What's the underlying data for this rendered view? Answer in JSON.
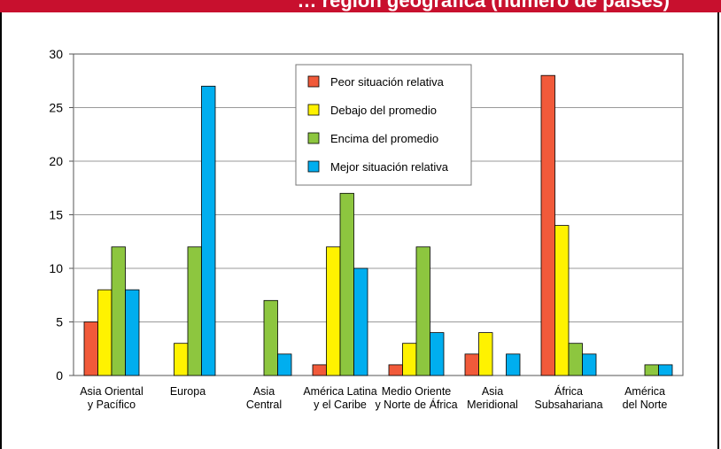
{
  "header": {
    "title": "… región geográfica (número de países)"
  },
  "colors": {
    "title_bar": "#c8102e",
    "peor": "#f15a3a",
    "debajo": "#fff200",
    "encima": "#8dc63f",
    "mejor": "#00aeef"
  },
  "chart_data": {
    "type": "bar",
    "title": "",
    "xlabel": "",
    "ylabel": "",
    "ylim": [
      0,
      30
    ],
    "yticks": [
      0,
      5,
      10,
      15,
      20,
      25,
      30
    ],
    "grid": true,
    "legend_position": "top-center",
    "categories": [
      [
        "Asia Oriental",
        "y Pacífico"
      ],
      [
        "Europa"
      ],
      [
        "Asia",
        "Central"
      ],
      [
        "América Latina",
        "y el Caribe"
      ],
      [
        "Medio Oriente",
        "y Norte de África"
      ],
      [
        "Asia",
        "Meridional"
      ],
      [
        "África",
        "Subsahariana"
      ],
      [
        "América",
        "del Norte"
      ]
    ],
    "series": [
      {
        "name": "Peor situación relativa",
        "color": "#f15a3a",
        "values": [
          5,
          0,
          0,
          1,
          1,
          2,
          28,
          0
        ]
      },
      {
        "name": "Debajo del promedio",
        "color": "#fff200",
        "values": [
          8,
          3,
          0,
          12,
          3,
          4,
          14,
          0
        ]
      },
      {
        "name": "Encima del promedio",
        "color": "#8dc63f",
        "values": [
          12,
          12,
          7,
          17,
          12,
          0,
          3,
          1
        ]
      },
      {
        "name": "Mejor situación relativa",
        "color": "#00aeef",
        "values": [
          8,
          27,
          2,
          10,
          4,
          2,
          2,
          1
        ]
      }
    ]
  }
}
